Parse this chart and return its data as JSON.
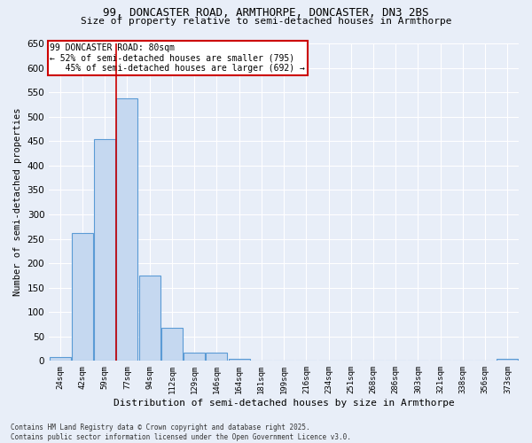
{
  "title_line1": "99, DONCASTER ROAD, ARMTHORPE, DONCASTER, DN3 2BS",
  "title_line2": "Size of property relative to semi-detached houses in Armthorpe",
  "xlabel": "Distribution of semi-detached houses by size in Armthorpe",
  "ylabel": "Number of semi-detached properties",
  "categories": [
    "24sqm",
    "42sqm",
    "59sqm",
    "77sqm",
    "94sqm",
    "112sqm",
    "129sqm",
    "146sqm",
    "164sqm",
    "181sqm",
    "199sqm",
    "216sqm",
    "234sqm",
    "251sqm",
    "268sqm",
    "286sqm",
    "303sqm",
    "321sqm",
    "338sqm",
    "356sqm",
    "373sqm"
  ],
  "values": [
    8,
    262,
    455,
    538,
    175,
    68,
    17,
    17,
    5,
    0,
    0,
    0,
    0,
    0,
    0,
    0,
    0,
    0,
    0,
    0,
    5
  ],
  "bar_color": "#c5d8f0",
  "bar_edge_color": "#5b9bd5",
  "property_label": "99 DONCASTER ROAD: 80sqm",
  "pct_smaller": 52,
  "n_smaller": 795,
  "pct_larger": 45,
  "n_larger": 692,
  "vline_bin_index": 3,
  "background_color": "#e8eef8",
  "grid_color": "#ffffff",
  "footnote": "Contains HM Land Registry data © Crown copyright and database right 2025.\nContains public sector information licensed under the Open Government Licence v3.0.",
  "ylim": [
    0,
    650
  ],
  "yticks": [
    0,
    50,
    100,
    150,
    200,
    250,
    300,
    350,
    400,
    450,
    500,
    550,
    600,
    650
  ]
}
